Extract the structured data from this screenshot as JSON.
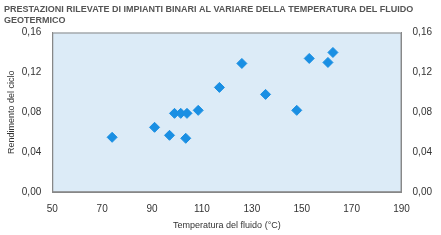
{
  "chart_data": {
    "type": "scatter",
    "title": "PRESTAZIONI RILEVATE DI IMPIANTI BINARI AL VARIARE DELLA TEMPERATURA DEL FLUIDO GEOTERMICO",
    "x_label": "Temperatura del fluido (°C)",
    "y_label": "Rendimento del ciclo",
    "x": [
      74,
      91,
      97,
      99,
      101.5,
      104,
      103.5,
      108.5,
      117,
      126,
      135.5,
      148,
      153,
      160.5,
      162.5
    ],
    "values": [
      0.055,
      0.065,
      0.057,
      0.079,
      0.079,
      0.079,
      0.054,
      0.082,
      0.105,
      0.129,
      0.098,
      0.082,
      0.134,
      0.13,
      0.14
    ],
    "color": "#1a8fe3",
    "marker": "diamond",
    "xlim": [
      50,
      190
    ],
    "xticks": [
      50,
      70,
      90,
      110,
      130,
      150,
      170,
      190
    ],
    "ylim": [
      0,
      0.16
    ],
    "yticks": [
      {
        "value": 0,
        "label": "0,00"
      },
      {
        "value": 0.04,
        "label": "0,04"
      },
      {
        "value": 0.08,
        "label": "0,08"
      },
      {
        "value": 0.12,
        "label": "0,12"
      },
      {
        "value": 0.16,
        "label": "0,16"
      }
    ],
    "y2lim": [
      0,
      0.16
    ],
    "y2ticks": [
      {
        "value": 0,
        "label": "0,00"
      },
      {
        "value": 0.04,
        "label": "0,04"
      },
      {
        "value": 0.08,
        "label": "0,08"
      },
      {
        "value": 0.12,
        "label": "0,12"
      },
      {
        "value": 0.16,
        "label": "0,16"
      }
    ],
    "grid": false
  }
}
